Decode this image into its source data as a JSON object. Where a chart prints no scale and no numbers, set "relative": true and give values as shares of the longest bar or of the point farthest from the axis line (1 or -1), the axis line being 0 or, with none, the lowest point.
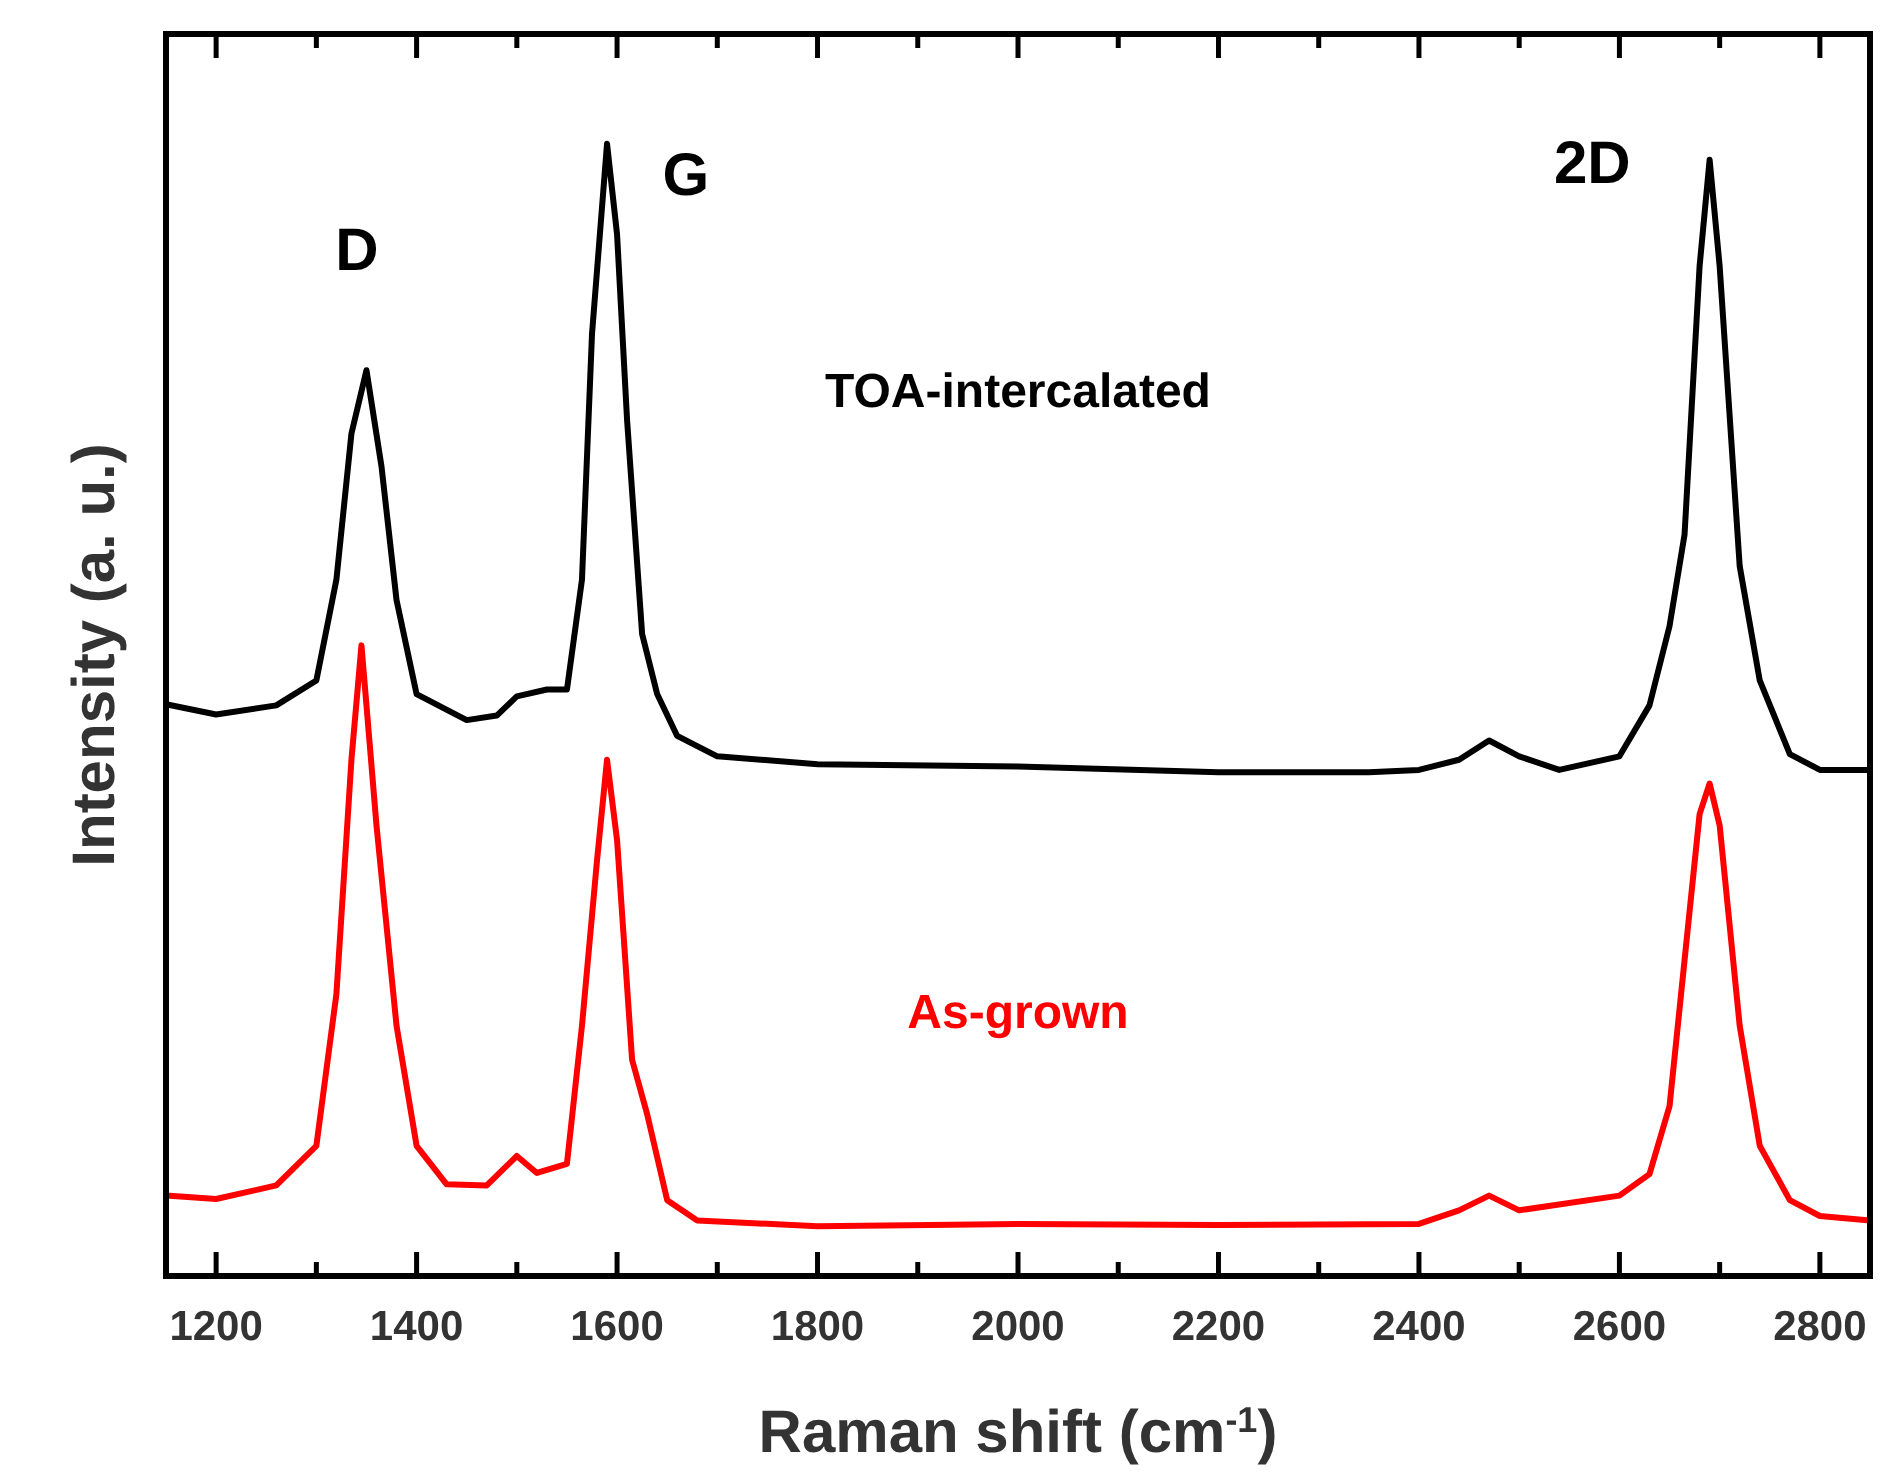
{
  "chart_data": {
    "type": "line",
    "relative": true,
    "xlabel": "Raman shift (cm$^{-1}$)",
    "ylabel": "Intensity (a. u.)",
    "xlim": [
      1150,
      2850
    ],
    "xticks": [
      1200,
      {
        "value": 1300,
        "label": null
      },
      1400,
      {
        "value": 1500,
        "label": null
      },
      1600,
      {
        "value": 1700,
        "label": null
      },
      1800,
      {
        "value": 1900,
        "label": null
      },
      2000,
      {
        "value": 2100,
        "label": null
      },
      2200,
      {
        "value": 2300,
        "label": null
      },
      2400,
      {
        "value": 2500,
        "label": null
      },
      2600,
      {
        "value": 2700,
        "label": null
      },
      2800
    ],
    "grid": false,
    "marker": "none",
    "line_style": "solid",
    "annotations": [
      "D",
      "G",
      "2D"
    ],
    "series": [
      {
        "name": "TOA-intercalated",
        "color": "#000000",
        "x": [
          1150,
          1200,
          1260,
          1300,
          1320,
          1335,
          1350,
          1365,
          1380,
          1400,
          1450,
          1480,
          1500,
          1530,
          1550,
          1565,
          1575,
          1590,
          1600,
          1610,
          1625,
          1640,
          1660,
          1700,
          1800,
          2000,
          2200,
          2350,
          2400,
          2440,
          2470,
          2500,
          2540,
          2600,
          2630,
          2650,
          2665,
          2680,
          2690,
          2700,
          2720,
          2740,
          2770,
          2800,
          2850
        ],
        "values": [
          0.505,
          0.496,
          0.504,
          0.526,
          0.615,
          0.744,
          0.8,
          0.715,
          0.597,
          0.514,
          0.491,
          0.495,
          0.512,
          0.518,
          0.518,
          0.615,
          0.832,
          1,
          0.92,
          0.756,
          0.567,
          0.514,
          0.477,
          0.459,
          0.452,
          0.45,
          0.445,
          0.445,
          0.447,
          0.456,
          0.473,
          0.459,
          0.447,
          0.459,
          0.504,
          0.574,
          0.655,
          0.892,
          0.986,
          0.892,
          0.627,
          0.526,
          0.461,
          0.447,
          0.447
        ]
      },
      {
        "name": "As-grown",
        "color": "#ff0000",
        "x": [
          1150,
          1200,
          1260,
          1300,
          1320,
          1335,
          1345,
          1360,
          1380,
          1400,
          1430,
          1470,
          1500,
          1520,
          1550,
          1565,
          1580,
          1590,
          1600,
          1615,
          1630,
          1650,
          1680,
          1800,
          2000,
          2200,
          2400,
          2440,
          2470,
          2500,
          2600,
          2630,
          2650,
          2665,
          2680,
          2690,
          2700,
          2720,
          2740,
          2770,
          2800,
          2850
        ],
        "values": [
          0.071,
          0.068,
          0.08,
          0.115,
          0.249,
          0.456,
          0.557,
          0.398,
          0.221,
          0.115,
          0.081,
          0.08,
          0.106,
          0.091,
          0.099,
          0.221,
          0.367,
          0.456,
          0.385,
          0.191,
          0.143,
          0.067,
          0.049,
          0.044,
          0.046,
          0.045,
          0.046,
          0.058,
          0.071,
          0.058,
          0.071,
          0.09,
          0.15,
          0.279,
          0.408,
          0.435,
          0.398,
          0.221,
          0.115,
          0.067,
          0.053,
          0.049
        ]
      }
    ]
  }
}
